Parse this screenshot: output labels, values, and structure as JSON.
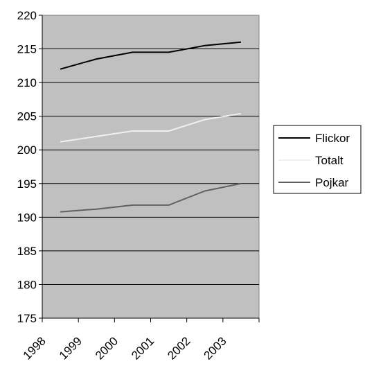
{
  "chart_data": {
    "type": "line",
    "title": "",
    "xlabel": "",
    "ylabel": "",
    "x": [
      "1998",
      "1999",
      "2000",
      "2001",
      "2002",
      "2003"
    ],
    "ylim": [
      175,
      220
    ],
    "yticks": [
      175,
      180,
      185,
      190,
      195,
      200,
      205,
      210,
      215,
      220
    ],
    "grid": "horizontal",
    "plot_background": "#c0c0c0",
    "legend_position": "right",
    "series": [
      {
        "name": "Flickor",
        "color": "#000000",
        "values": [
          212.0,
          213.5,
          214.5,
          214.5,
          215.5,
          216.0
        ]
      },
      {
        "name": "Totalt",
        "color": "#f0f0f0",
        "values": [
          201.2,
          202.0,
          202.8,
          202.8,
          204.5,
          205.4
        ]
      },
      {
        "name": "Pojkar",
        "color": "#606060",
        "values": [
          190.8,
          191.2,
          191.8,
          191.8,
          193.9,
          195.0
        ]
      }
    ]
  }
}
